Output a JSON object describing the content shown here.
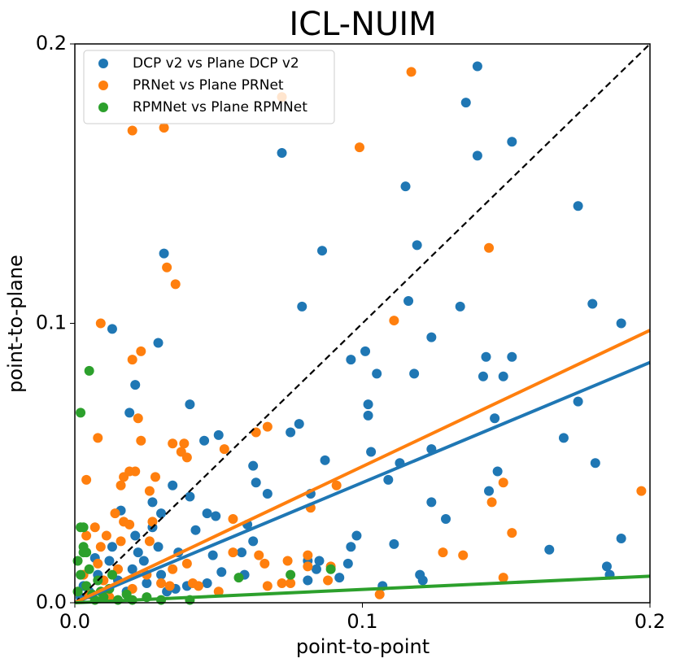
{
  "chart_data": {
    "type": "scatter",
    "title": "ICL-NUIM",
    "x_label": "point-to-point",
    "y_label": "point-to-plane",
    "xlim": [
      0,
      0.2
    ],
    "ylim": [
      0,
      0.2
    ],
    "xticks": [
      {
        "value": 0,
        "label": "0.0"
      },
      0.1,
      0.2
    ],
    "yticks": [
      {
        "value": 0,
        "label": "0.0"
      },
      0.1,
      0.2
    ],
    "diagonal": true,
    "legend": "upper left",
    "series": [
      {
        "name": "DCP v2 vs Plane DCP v2",
        "color": "#1f77b4",
        "fit_slope": 0.43,
        "x": [
          0.14,
          0.136,
          0.14,
          0.152,
          0.072,
          0.115,
          0.175,
          0.119,
          0.086,
          0.031,
          0.134,
          0.079,
          0.116,
          0.18,
          0.19,
          0.013,
          0.124,
          0.029,
          0.101,
          0.096,
          0.143,
          0.152,
          0.105,
          0.118,
          0.142,
          0.149,
          0.021,
          0.175,
          0.04,
          0.102,
          0.102,
          0.146,
          0.019,
          0.078,
          0.075,
          0.17,
          0.05,
          0.045,
          0.103,
          0.124,
          0.113,
          0.181,
          0.087,
          0.062,
          0.147,
          0.109,
          0.063,
          0.034,
          0.144,
          0.082,
          0.067,
          0.04,
          0.016,
          0.027,
          0.124,
          0.03,
          0.046,
          0.049,
          0.129,
          0.06,
          0.027,
          0.042,
          0.021,
          0.098,
          0.096,
          0.062,
          0.111,
          0.165,
          0.19,
          0.029,
          0.036,
          0.024,
          0.048,
          0.081,
          0.085,
          0.095,
          0.058,
          0.185,
          0.186,
          0.12,
          0.121,
          0.092,
          0.107,
          0.084,
          0.081,
          0.059,
          0.051,
          0.046,
          0.039,
          0.035,
          0.005,
          0.008,
          0.012,
          0.015,
          0.01,
          0.003,
          0.02,
          0.018,
          0.007,
          0.025,
          0.03,
          0.032,
          0.002,
          0.013,
          0.022
        ],
        "values": [
          0.192,
          0.179,
          0.16,
          0.165,
          0.161,
          0.149,
          0.142,
          0.128,
          0.126,
          0.125,
          0.106,
          0.106,
          0.108,
          0.107,
          0.1,
          0.098,
          0.095,
          0.093,
          0.09,
          0.087,
          0.088,
          0.088,
          0.082,
          0.082,
          0.081,
          0.081,
          0.078,
          0.072,
          0.071,
          0.071,
          0.067,
          0.066,
          0.068,
          0.064,
          0.061,
          0.059,
          0.06,
          0.058,
          0.054,
          0.055,
          0.05,
          0.05,
          0.051,
          0.049,
          0.047,
          0.044,
          0.043,
          0.042,
          0.04,
          0.039,
          0.039,
          0.038,
          0.033,
          0.036,
          0.036,
          0.032,
          0.032,
          0.031,
          0.03,
          0.028,
          0.027,
          0.026,
          0.024,
          0.024,
          0.02,
          0.022,
          0.021,
          0.019,
          0.023,
          0.02,
          0.018,
          0.015,
          0.017,
          0.015,
          0.015,
          0.014,
          0.018,
          0.013,
          0.01,
          0.01,
          0.008,
          0.009,
          0.006,
          0.012,
          0.008,
          0.01,
          0.011,
          0.007,
          0.006,
          0.005,
          0.004,
          0.01,
          0.015,
          0.008,
          0.003,
          0.006,
          0.012,
          0.004,
          0.016,
          0.007,
          0.01,
          0.004,
          0.002,
          0.02,
          0.018
        ]
      },
      {
        "name": "PRNet vs Plane PRNet",
        "color": "#ff7f0e",
        "fit_slope": 0.4875,
        "x": [
          0.117,
          0.072,
          0.02,
          0.031,
          0.099,
          0.144,
          0.032,
          0.035,
          0.111,
          0.009,
          0.02,
          0.023,
          0.022,
          0.008,
          0.023,
          0.034,
          0.038,
          0.037,
          0.039,
          0.052,
          0.067,
          0.063,
          0.019,
          0.021,
          0.017,
          0.028,
          0.004,
          0.026,
          0.016,
          0.091,
          0.197,
          0.149,
          0.145,
          0.082,
          0.014,
          0.017,
          0.027,
          0.055,
          0.007,
          0.019,
          0.004,
          0.011,
          0.152,
          0.016,
          0.009,
          0.026,
          0.128,
          0.135,
          0.055,
          0.064,
          0.081,
          0.074,
          0.066,
          0.039,
          0.034,
          0.081,
          0.089,
          0.149,
          0.072,
          0.075,
          0.088,
          0.067,
          0.041,
          0.043,
          0.03,
          0.033,
          0.106,
          0.05,
          0.01,
          0.015,
          0.005,
          0.02,
          0.012,
          0.025,
          0.003,
          0.008
        ],
        "values": [
          0.19,
          0.181,
          0.169,
          0.17,
          0.163,
          0.127,
          0.12,
          0.114,
          0.101,
          0.1,
          0.087,
          0.09,
          0.066,
          0.059,
          0.058,
          0.057,
          0.057,
          0.054,
          0.052,
          0.055,
          0.063,
          0.061,
          0.047,
          0.047,
          0.045,
          0.045,
          0.044,
          0.04,
          0.042,
          0.042,
          0.04,
          0.043,
          0.036,
          0.034,
          0.032,
          0.029,
          0.029,
          0.03,
          0.027,
          0.028,
          0.024,
          0.024,
          0.025,
          0.022,
          0.02,
          0.022,
          0.018,
          0.017,
          0.018,
          0.017,
          0.017,
          0.015,
          0.014,
          0.014,
          0.012,
          0.013,
          0.013,
          0.009,
          0.007,
          0.007,
          0.008,
          0.006,
          0.007,
          0.006,
          0.007,
          0.006,
          0.003,
          0.004,
          0.008,
          0.012,
          0.003,
          0.005,
          0.002,
          0.01,
          0.01,
          0.014
        ]
      },
      {
        "name": "RPMNet vs Plane RPMNet",
        "color": "#2ca02c",
        "fit_slope": 0.0475,
        "x": [
          0.005,
          0.002,
          0.002,
          0.003,
          0.003,
          0.004,
          0.075,
          0.089,
          0.057,
          0.04,
          0.001,
          0.002,
          0.004,
          0.006,
          0.008,
          0.01,
          0.012,
          0.015,
          0.018,
          0.02,
          0.025,
          0.03,
          0.003,
          0.001,
          0.005,
          0.007,
          0.013,
          0.009
        ],
        "values": [
          0.083,
          0.068,
          0.027,
          0.027,
          0.018,
          0.018,
          0.01,
          0.012,
          0.009,
          0.001,
          0.015,
          0.01,
          0.006,
          0.003,
          0.008,
          0.002,
          0.005,
          0.001,
          0.003,
          0.001,
          0.002,
          0.001,
          0.02,
          0.004,
          0.012,
          0.001,
          0.01,
          0.004
        ]
      }
    ]
  }
}
